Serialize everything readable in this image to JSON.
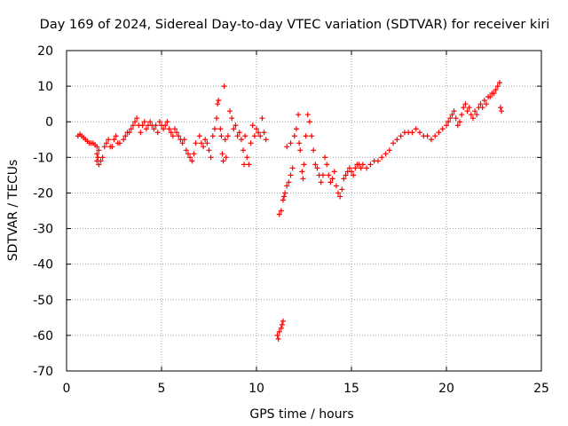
{
  "chart_data": {
    "type": "scatter",
    "title": "Day 169 of 2024, Sidereal Day-to-day VTEC variation (SDTVAR) for receiver kiri",
    "xlabel": "GPS time / hours",
    "ylabel": "SDTVAR / TECUs",
    "xlim": [
      0,
      25
    ],
    "ylim": [
      -70,
      20
    ],
    "xticks": [
      0,
      5,
      10,
      15,
      20,
      25
    ],
    "yticks": [
      20,
      10,
      0,
      -10,
      -20,
      -30,
      -40,
      -50,
      -60,
      -70
    ],
    "grid": true,
    "marker": "+",
    "series": [
      {
        "name": "SDTVAR",
        "color": "#ff0000",
        "points": [
          [
            0.6,
            -4
          ],
          [
            0.7,
            -3.5
          ],
          [
            0.8,
            -4
          ],
          [
            0.9,
            -4.5
          ],
          [
            1.0,
            -5
          ],
          [
            1.1,
            -5.5
          ],
          [
            1.2,
            -6
          ],
          [
            1.3,
            -6
          ],
          [
            1.4,
            -6
          ],
          [
            1.5,
            -6.5
          ],
          [
            1.6,
            -7
          ],
          [
            1.7,
            -8
          ],
          [
            1.6,
            -9
          ],
          [
            1.65,
            -10
          ],
          [
            1.6,
            -11
          ],
          [
            1.7,
            -12
          ],
          [
            1.8,
            -11
          ],
          [
            1.9,
            -10
          ],
          [
            2.0,
            -7
          ],
          [
            2.1,
            -6
          ],
          [
            2.2,
            -5
          ],
          [
            2.3,
            -7
          ],
          [
            2.4,
            -7
          ],
          [
            2.5,
            -5
          ],
          [
            2.6,
            -4
          ],
          [
            2.7,
            -6
          ],
          [
            2.8,
            -6
          ],
          [
            3.0,
            -5
          ],
          [
            3.1,
            -4
          ],
          [
            3.2,
            -3
          ],
          [
            3.3,
            -3
          ],
          [
            3.4,
            -2
          ],
          [
            3.5,
            -1
          ],
          [
            3.6,
            0
          ],
          [
            3.7,
            1
          ],
          [
            3.8,
            -1
          ],
          [
            3.9,
            -3
          ],
          [
            4.0,
            -1
          ],
          [
            4.1,
            0
          ],
          [
            4.2,
            -2
          ],
          [
            4.3,
            -1
          ],
          [
            4.4,
            0
          ],
          [
            4.5,
            -1
          ],
          [
            4.6,
            -2
          ],
          [
            4.7,
            -1
          ],
          [
            4.8,
            -3
          ],
          [
            4.9,
            0
          ],
          [
            5.0,
            -1
          ],
          [
            5.1,
            -2
          ],
          [
            5.2,
            -1
          ],
          [
            5.3,
            0
          ],
          [
            5.4,
            -2
          ],
          [
            5.5,
            -3
          ],
          [
            5.6,
            -4
          ],
          [
            5.7,
            -2
          ],
          [
            5.8,
            -3
          ],
          [
            5.9,
            -4
          ],
          [
            6.0,
            -5
          ],
          [
            6.1,
            -6
          ],
          [
            6.2,
            -5
          ],
          [
            6.3,
            -8
          ],
          [
            6.4,
            -9
          ],
          [
            6.5,
            -10
          ],
          [
            6.6,
            -11
          ],
          [
            6.7,
            -9
          ],
          [
            6.8,
            -6
          ],
          [
            7.0,
            -4
          ],
          [
            7.1,
            -6
          ],
          [
            7.2,
            -7
          ],
          [
            7.3,
            -5
          ],
          [
            7.4,
            -6
          ],
          [
            7.5,
            -8
          ],
          [
            7.6,
            -10
          ],
          [
            7.7,
            -4
          ],
          [
            7.8,
            -2
          ],
          [
            7.9,
            1
          ],
          [
            7.95,
            5
          ],
          [
            8.0,
            6
          ],
          [
            8.1,
            -2
          ],
          [
            8.15,
            -4
          ],
          [
            8.2,
            -9
          ],
          [
            8.25,
            -11
          ],
          [
            8.3,
            10
          ],
          [
            8.35,
            -5
          ],
          [
            8.4,
            -10
          ],
          [
            8.5,
            -4
          ],
          [
            8.6,
            3
          ],
          [
            8.7,
            1
          ],
          [
            8.8,
            -2
          ],
          [
            8.9,
            -1
          ],
          [
            9.0,
            -4
          ],
          [
            9.1,
            -3
          ],
          [
            9.2,
            -5
          ],
          [
            9.3,
            -8
          ],
          [
            9.35,
            -12
          ],
          [
            9.4,
            -4
          ],
          [
            9.5,
            -10
          ],
          [
            9.6,
            -12
          ],
          [
            9.7,
            -6
          ],
          [
            9.8,
            -1
          ],
          [
            9.9,
            -4
          ],
          [
            10.0,
            -2
          ],
          [
            10.1,
            -3
          ],
          [
            10.2,
            -4
          ],
          [
            10.3,
            1
          ],
          [
            10.4,
            -3
          ],
          [
            10.5,
            -5
          ],
          [
            11.1,
            -60
          ],
          [
            11.15,
            -61
          ],
          [
            11.2,
            -59
          ],
          [
            11.3,
            -58
          ],
          [
            11.35,
            -57
          ],
          [
            11.4,
            -56
          ],
          [
            11.2,
            -26
          ],
          [
            11.3,
            -25
          ],
          [
            11.4,
            -22
          ],
          [
            11.45,
            -21
          ],
          [
            11.5,
            -20
          ],
          [
            11.6,
            -18
          ],
          [
            11.7,
            -17
          ],
          [
            11.8,
            -15
          ],
          [
            11.9,
            -13
          ],
          [
            11.6,
            -7
          ],
          [
            11.8,
            -6
          ],
          [
            12.0,
            -4
          ],
          [
            12.1,
            -2
          ],
          [
            12.2,
            2
          ],
          [
            12.25,
            -6
          ],
          [
            12.3,
            -8
          ],
          [
            12.4,
            -14
          ],
          [
            12.45,
            -16
          ],
          [
            12.5,
            -12
          ],
          [
            12.6,
            -4
          ],
          [
            12.7,
            2
          ],
          [
            12.8,
            0
          ],
          [
            12.9,
            -4
          ],
          [
            13.0,
            -8
          ],
          [
            13.1,
            -12
          ],
          [
            13.2,
            -13
          ],
          [
            13.3,
            -15
          ],
          [
            13.4,
            -17
          ],
          [
            13.5,
            -15
          ],
          [
            13.6,
            -10
          ],
          [
            13.7,
            -12
          ],
          [
            13.8,
            -15
          ],
          [
            13.9,
            -17
          ],
          [
            14.0,
            -16
          ],
          [
            14.1,
            -14
          ],
          [
            14.2,
            -18
          ],
          [
            14.3,
            -20
          ],
          [
            14.4,
            -21
          ],
          [
            14.5,
            -19
          ],
          [
            14.6,
            -16
          ],
          [
            14.7,
            -15
          ],
          [
            14.8,
            -14
          ],
          [
            14.9,
            -13
          ],
          [
            15.0,
            -14
          ],
          [
            15.1,
            -15
          ],
          [
            15.2,
            -13
          ],
          [
            15.3,
            -12
          ],
          [
            15.4,
            -12
          ],
          [
            15.5,
            -13
          ],
          [
            15.6,
            -12
          ],
          [
            15.8,
            -13
          ],
          [
            16.0,
            -12
          ],
          [
            16.2,
            -11
          ],
          [
            16.4,
            -11
          ],
          [
            16.6,
            -10
          ],
          [
            16.8,
            -9
          ],
          [
            17.0,
            -8
          ],
          [
            17.2,
            -6
          ],
          [
            17.4,
            -5
          ],
          [
            17.6,
            -4
          ],
          [
            17.8,
            -3
          ],
          [
            18.0,
            -3
          ],
          [
            18.2,
            -3
          ],
          [
            18.4,
            -2
          ],
          [
            18.6,
            -3
          ],
          [
            18.8,
            -4
          ],
          [
            19.0,
            -4
          ],
          [
            19.2,
            -5
          ],
          [
            19.4,
            -4
          ],
          [
            19.6,
            -3
          ],
          [
            19.8,
            -2
          ],
          [
            20.0,
            -1
          ],
          [
            20.1,
            0
          ],
          [
            20.2,
            1
          ],
          [
            20.3,
            2
          ],
          [
            20.4,
            3
          ],
          [
            20.5,
            1
          ],
          [
            20.6,
            -1
          ],
          [
            20.7,
            0
          ],
          [
            20.8,
            2
          ],
          [
            20.9,
            4
          ],
          [
            21.0,
            5
          ],
          [
            21.1,
            3
          ],
          [
            21.2,
            4
          ],
          [
            21.3,
            2
          ],
          [
            21.4,
            1
          ],
          [
            21.5,
            3
          ],
          [
            21.6,
            2
          ],
          [
            21.7,
            4
          ],
          [
            21.8,
            5
          ],
          [
            21.9,
            4
          ],
          [
            22.0,
            6
          ],
          [
            22.1,
            5
          ],
          [
            22.2,
            7
          ],
          [
            22.3,
            7
          ],
          [
            22.4,
            8
          ],
          [
            22.5,
            8
          ],
          [
            22.6,
            9
          ],
          [
            22.7,
            10
          ],
          [
            22.8,
            11
          ],
          [
            22.85,
            4
          ],
          [
            22.9,
            3
          ]
        ]
      }
    ]
  }
}
